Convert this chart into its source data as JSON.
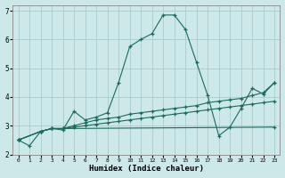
{
  "xlabel": "Humidex (Indice chaleur)",
  "bg_color": "#cce8e8",
  "grid_color": "#aacccc",
  "line_color": "#1a6b5a",
  "spine_color": "#888888",
  "xlim": [
    -0.5,
    23.5
  ],
  "ylim": [
    2,
    7.2
  ],
  "xticks": [
    0,
    1,
    2,
    3,
    4,
    5,
    6,
    7,
    8,
    9,
    10,
    11,
    12,
    13,
    14,
    15,
    16,
    17,
    18,
    19,
    20,
    21,
    22,
    23
  ],
  "yticks": [
    2,
    3,
    4,
    5,
    6,
    7
  ],
  "line1_x": [
    0,
    1,
    2,
    3,
    4,
    5,
    6,
    7,
    8,
    9,
    10,
    11,
    12,
    13,
    14,
    15,
    16,
    17,
    18,
    19,
    20,
    21,
    22,
    23
  ],
  "line1_y": [
    2.5,
    2.3,
    2.8,
    2.9,
    2.85,
    3.5,
    3.2,
    3.3,
    3.45,
    4.5,
    5.75,
    6.0,
    6.2,
    6.85,
    6.85,
    6.35,
    5.2,
    4.05,
    2.65,
    2.95,
    3.6,
    4.3,
    4.1,
    4.5
  ],
  "line2_x": [
    0,
    2,
    3,
    4,
    5,
    6,
    7,
    8,
    9,
    10,
    11,
    12,
    13,
    14,
    15,
    16,
    17,
    18,
    19,
    20,
    21,
    22,
    23
  ],
  "line2_y": [
    2.5,
    2.8,
    2.9,
    2.9,
    3.0,
    3.1,
    3.2,
    3.25,
    3.3,
    3.4,
    3.45,
    3.5,
    3.55,
    3.6,
    3.65,
    3.7,
    3.8,
    3.85,
    3.9,
    3.95,
    4.05,
    4.15,
    4.5
  ],
  "line3_x": [
    0,
    2,
    3,
    4,
    23
  ],
  "line3_y": [
    2.5,
    2.8,
    2.9,
    2.9,
    2.95
  ],
  "line4_x": [
    0,
    2,
    3,
    4,
    5,
    6,
    7,
    8,
    9,
    10,
    11,
    12,
    13,
    14,
    15,
    16,
    17,
    18,
    19,
    20,
    21,
    22,
    23
  ],
  "line4_y": [
    2.5,
    2.8,
    2.9,
    2.9,
    2.95,
    3.0,
    3.05,
    3.1,
    3.15,
    3.2,
    3.25,
    3.3,
    3.35,
    3.4,
    3.45,
    3.5,
    3.55,
    3.6,
    3.65,
    3.7,
    3.75,
    3.8,
    3.85
  ]
}
